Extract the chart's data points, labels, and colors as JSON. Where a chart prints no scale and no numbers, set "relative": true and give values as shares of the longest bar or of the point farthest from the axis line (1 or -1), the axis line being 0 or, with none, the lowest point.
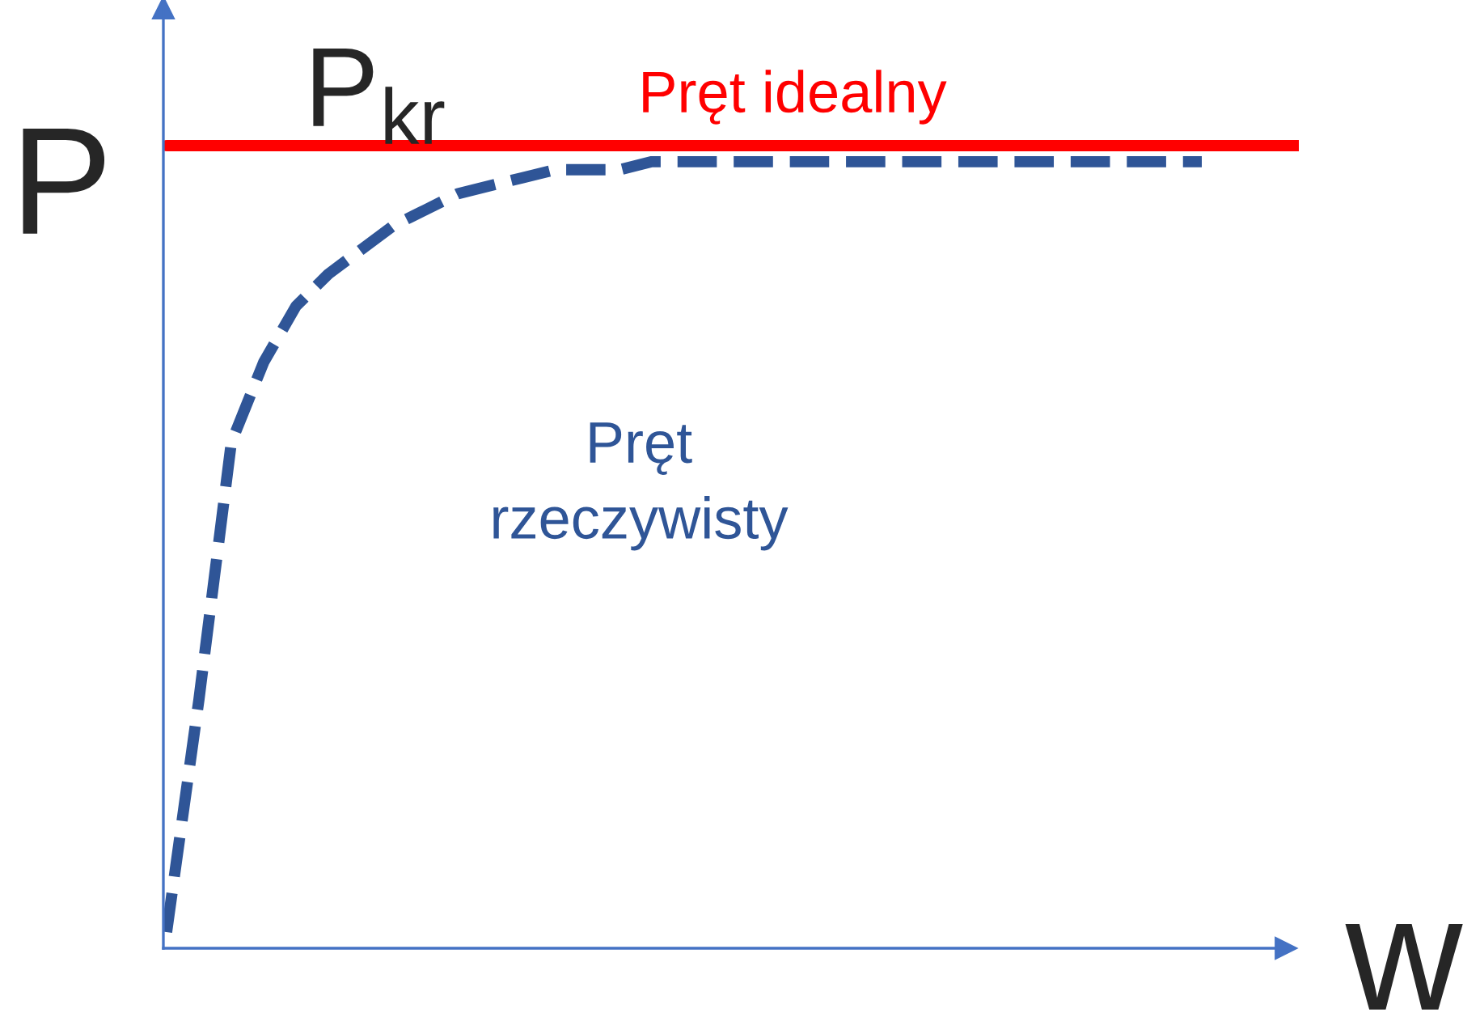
{
  "chart_data": {
    "type": "line",
    "relative": true,
    "ylabel": "P",
    "xlabel": "w",
    "categories": [
      null,
      null,
      null,
      null,
      null,
      null,
      null,
      null,
      null,
      null,
      null,
      null,
      null,
      null,
      null,
      null,
      null,
      null,
      null,
      null,
      null,
      null,
      null,
      null,
      null,
      null,
      null,
      null,
      null,
      null,
      null,
      null,
      null,
      null,
      null,
      null
    ],
    "series": [
      {
        "name": "Pręt idealny",
        "color": "#ff0000",
        "line_style": "solid",
        "values": [
          1,
          1,
          1,
          1,
          1,
          1,
          1,
          1,
          1,
          1,
          1,
          1,
          1,
          1,
          1,
          1,
          1,
          1,
          1,
          1,
          1,
          1,
          1,
          1,
          1,
          1,
          1,
          1,
          1,
          1,
          1,
          1,
          1,
          1,
          1,
          1
        ]
      },
      {
        "name": "Pręt\nrzeczywisty",
        "color": "#2f5597",
        "line_style": "dashed",
        "values": [
          0.02,
          0.31,
          0.63,
          0.73,
          0.8,
          0.84,
          0.87,
          0.9,
          0.92,
          0.94,
          0.95,
          0.96,
          0.97,
          0.97,
          0.97,
          0.98,
          0.98,
          0.98,
          0.98,
          0.98,
          0.98,
          0.98,
          0.98,
          0.98,
          0.98,
          0.98,
          0.98,
          0.98,
          0.98,
          0.98,
          0.98,
          0.98,
          0.98,
          null,
          null,
          null
        ]
      }
    ],
    "annotations": [
      "P$_{kr}$"
    ],
    "legend": false,
    "marker": "none"
  }
}
